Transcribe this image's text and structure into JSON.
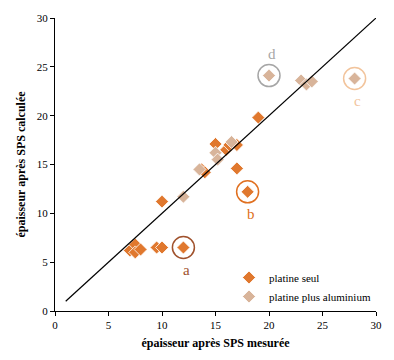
{
  "chart_data": {
    "type": "scatter",
    "x_label": "épaisseur après SPS mesurée",
    "y_label": "épaisseur après SPS calculée",
    "xlim": [
      0,
      30
    ],
    "ylim": [
      0,
      30
    ],
    "xticks": [
      0,
      5,
      10,
      15,
      20,
      25,
      30
    ],
    "yticks": [
      0,
      5,
      10,
      15,
      20,
      25,
      30
    ],
    "grid": false,
    "legend": "bottom right",
    "series": [
      {
        "name": "platine seul",
        "color": "#E0782E",
        "marker": "diamond",
        "x": [
          7,
          7.5,
          7.5,
          8,
          9.5,
          10,
          10,
          12,
          13.7,
          14,
          15,
          16,
          16.3,
          17,
          17,
          18,
          19
        ],
        "values": [
          6.2,
          6.8,
          6.0,
          6.3,
          6.5,
          6.5,
          11.2,
          6.5,
          14.5,
          14.2,
          17.1,
          16.5,
          17.0,
          17.0,
          14.6,
          12.2,
          19.8
        ]
      },
      {
        "name": "platine plus aluminium",
        "color": "#D8B49A",
        "marker": "diamond",
        "x": [
          12,
          13.5,
          15,
          15.2,
          16.5,
          20,
          23,
          23.5,
          24,
          28
        ],
        "values": [
          11.7,
          14.5,
          16.2,
          15.5,
          17.3,
          24.1,
          23.6,
          23.2,
          23.5,
          23.8
        ]
      },
      {
        "type": "line",
        "color": "#000000",
        "line_style": "solid",
        "x": [
          1,
          30
        ],
        "values": [
          1,
          30
        ]
      }
    ],
    "annotations": [
      {
        "text": "a",
        "x": 12,
        "y": 6.5,
        "color": "#A0522D"
      },
      {
        "text": "b",
        "x": 18,
        "y": 12.2,
        "color": "#E07020"
      },
      {
        "text": "c",
        "x": 28,
        "y": 23.8,
        "color": "#F2C49C"
      },
      {
        "text": "d",
        "x": 20,
        "y": 24.1,
        "color": "#A6A6A6"
      }
    ]
  }
}
